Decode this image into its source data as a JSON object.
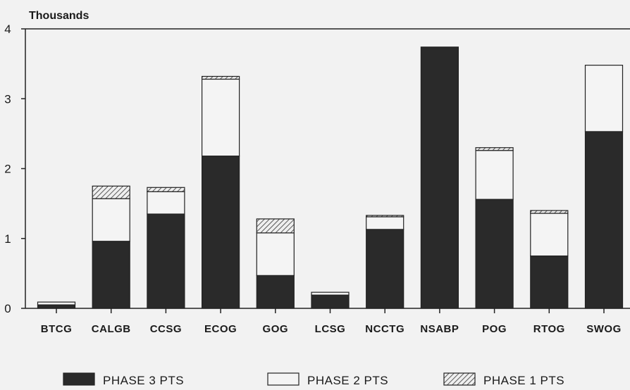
{
  "chart_data": {
    "type": "bar",
    "stacked": true,
    "y_unit_label": "Thousands",
    "ylim": [
      0,
      4
    ],
    "yticks": [
      "0",
      "1",
      "2",
      "3",
      "4"
    ],
    "grid": false,
    "legend_position": "bottom",
    "categories": [
      "BTCG",
      "CALGB",
      "CCSG",
      "ECOG",
      "GOG",
      "LCSG",
      "NCCTG",
      "NSABP",
      "POG",
      "RTOG",
      "SWOG"
    ],
    "series": [
      {
        "name": "PHASE 3 PTS",
        "fill": "dark",
        "color": "#2a2a2a",
        "values": [
          0.05,
          0.96,
          1.35,
          2.18,
          0.47,
          0.19,
          1.13,
          3.74,
          1.56,
          0.75,
          2.53
        ]
      },
      {
        "name": "PHASE 2 PTS",
        "fill": "white",
        "color": "#f4f4f4",
        "values": [
          0.04,
          0.61,
          0.32,
          1.1,
          0.61,
          0.04,
          0.18,
          0.0,
          0.7,
          0.61,
          0.95
        ]
      },
      {
        "name": "PHASE 1 PTS",
        "fill": "hatched",
        "color": "#9a9a9a",
        "values": [
          0.0,
          0.18,
          0.06,
          0.04,
          0.2,
          0.0,
          0.02,
          0.0,
          0.04,
          0.04,
          0.0
        ]
      }
    ]
  }
}
